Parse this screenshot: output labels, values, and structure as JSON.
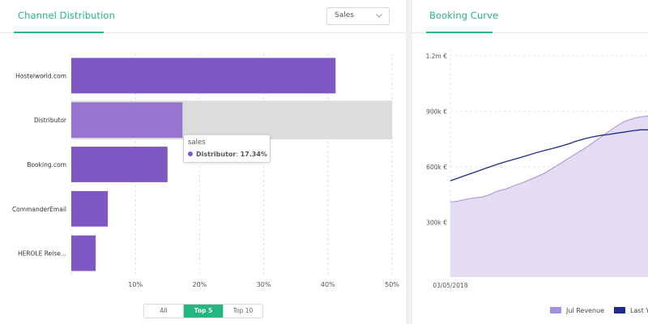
{
  "channel_panel": {
    "title": "Channel Distribution",
    "metric_select": {
      "value": "Sales",
      "icon": "chevron-down-icon"
    },
    "filters": [
      {
        "label": "All",
        "active": false
      },
      {
        "label": "Top 5",
        "active": true
      },
      {
        "label": "Top 10",
        "active": false
      }
    ],
    "tooltip": {
      "title": "sales",
      "label": "Distributor",
      "value": "17.34%"
    }
  },
  "booking_panel": {
    "title": "Booking Curve",
    "legend": [
      {
        "label": "Jul Revenue",
        "color": "#a68fdb"
      },
      {
        "label": "Last Yea",
        "color": "#1e2a8c"
      }
    ]
  },
  "colors": {
    "accent": "#21b77e",
    "bar": "#7e57c2",
    "bar_highlight": "#9575cd",
    "area_fill": "#e3dcf3",
    "area_line": "#a68fdb",
    "last_year_line": "#1e2a8c"
  },
  "chart_data": [
    {
      "type": "bar",
      "orientation": "horizontal",
      "categories": [
        "Hostelworld.com",
        "Distributor",
        "Booking.com",
        "CommanderEmail",
        "HEROLE Reise..."
      ],
      "series": [
        {
          "values": [
            41.2,
            17.34,
            15.0,
            5.7,
            3.8
          ]
        }
      ],
      "xlim": [
        0,
        50
      ],
      "x_ticks": [
        "10%",
        "20%",
        "30%",
        "40%",
        "50%"
      ],
      "x_tick_values": [
        10,
        20,
        30,
        40,
        50
      ],
      "grid": "vertical dashed",
      "highlighted_category": "Distributor"
    },
    {
      "type": "area",
      "x_start_label": "03/05/2018",
      "y_ticks": [
        "1.2m €",
        "900k €",
        "600k €",
        "300k €"
      ],
      "y_tick_values": [
        1200000,
        900000,
        600000,
        300000
      ],
      "ylim": [
        0,
        1200000
      ],
      "x_index_max": 100,
      "series": [
        {
          "name": "Jul Revenue",
          "type": "area",
          "x": [
            0,
            4,
            8,
            12,
            16,
            20,
            24,
            28,
            32,
            36,
            40,
            44,
            48,
            52,
            56,
            60,
            64,
            68,
            72,
            76,
            80,
            84,
            88,
            92,
            96,
            100
          ],
          "values": [
            410000,
            415000,
            425000,
            432000,
            437000,
            450000,
            470000,
            480000,
            498000,
            512000,
            530000,
            548000,
            568000,
            595000,
            620000,
            648000,
            675000,
            700000,
            730000,
            760000,
            790000,
            820000,
            845000,
            860000,
            870000,
            875000
          ]
        },
        {
          "name": "Last Yea",
          "type": "line",
          "x": [
            0,
            4,
            8,
            12,
            16,
            20,
            24,
            28,
            32,
            36,
            40,
            44,
            48,
            52,
            56,
            60,
            64,
            68,
            72,
            76,
            80,
            84,
            88,
            92,
            96,
            100
          ],
          "values": [
            525000,
            540000,
            555000,
            570000,
            585000,
            600000,
            615000,
            628000,
            640000,
            652000,
            665000,
            678000,
            690000,
            700000,
            712000,
            725000,
            740000,
            752000,
            762000,
            770000,
            775000,
            782000,
            788000,
            795000,
            800000,
            800000
          ]
        }
      ]
    }
  ]
}
